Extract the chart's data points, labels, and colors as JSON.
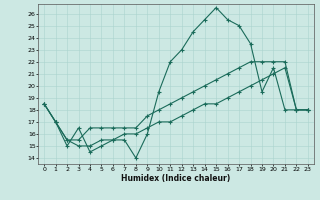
{
  "xlabel": "Humidex (Indice chaleur)",
  "bg_color": "#cce8e3",
  "grid_color": "#aad4ce",
  "line_color": "#1a6b5a",
  "xlim": [
    -0.5,
    23.5
  ],
  "ylim": [
    13.5,
    26.8
  ],
  "yticks": [
    14,
    15,
    16,
    17,
    18,
    19,
    20,
    21,
    22,
    23,
    24,
    25,
    26
  ],
  "xticks": [
    0,
    1,
    2,
    3,
    4,
    5,
    6,
    7,
    8,
    9,
    10,
    11,
    12,
    13,
    14,
    15,
    16,
    17,
    18,
    19,
    20,
    21,
    22,
    23
  ],
  "line1_x": [
    0,
    1,
    2,
    3,
    4,
    5,
    6,
    7,
    8,
    9,
    10,
    11,
    12,
    13,
    14,
    15,
    16,
    17,
    18,
    19,
    20,
    21,
    22,
    23
  ],
  "line1_y": [
    18.5,
    17.0,
    15.0,
    16.5,
    14.5,
    15.0,
    15.5,
    15.5,
    14.0,
    16.0,
    19.5,
    22.0,
    23.0,
    24.5,
    25.5,
    26.5,
    25.5,
    25.0,
    23.5,
    19.5,
    21.5,
    18.0,
    18.0,
    18.0
  ],
  "line2_x": [
    0,
    1,
    2,
    3,
    4,
    5,
    6,
    7,
    8,
    9,
    10,
    11,
    12,
    13,
    14,
    15,
    16,
    17,
    18,
    19,
    20,
    21,
    22,
    23
  ],
  "line2_y": [
    18.5,
    17.0,
    15.5,
    15.5,
    16.5,
    16.5,
    16.5,
    16.5,
    16.5,
    17.5,
    18.0,
    18.5,
    19.0,
    19.5,
    20.0,
    20.5,
    21.0,
    21.5,
    22.0,
    22.0,
    22.0,
    22.0,
    18.0,
    18.0
  ],
  "line3_x": [
    0,
    1,
    2,
    3,
    4,
    5,
    6,
    7,
    8,
    9,
    10,
    11,
    12,
    13,
    14,
    15,
    16,
    17,
    18,
    19,
    20,
    21,
    22,
    23
  ],
  "line3_y": [
    18.5,
    17.0,
    15.5,
    15.0,
    15.0,
    15.5,
    15.5,
    16.0,
    16.0,
    16.5,
    17.0,
    17.0,
    17.5,
    18.0,
    18.5,
    18.5,
    19.0,
    19.5,
    20.0,
    20.5,
    21.0,
    21.5,
    18.0,
    18.0
  ]
}
